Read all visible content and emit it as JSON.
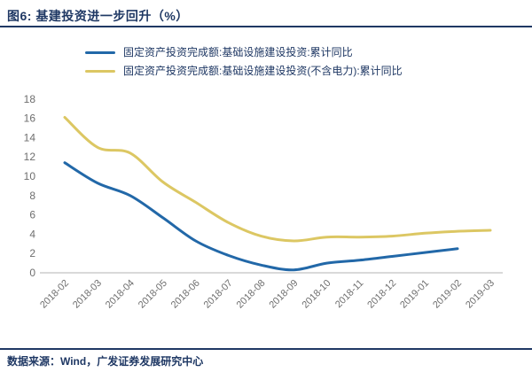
{
  "header": {
    "title": "图6:  基建投资进一步回升（%）"
  },
  "footer": {
    "source": "数据来源：Wind，广发证券发展研究中心"
  },
  "colors": {
    "navy": "#1F3864",
    "axis_text": "#6E6E6E",
    "axis_line": "#D9D9D9",
    "series_blue": "#2268A8",
    "series_yellow": "#DCC763",
    "background": "#FFFFFF"
  },
  "chart_data": {
    "type": "line",
    "title": "基建投资进一步回升（%）",
    "xlabel": "",
    "ylabel": "",
    "ylim": [
      0,
      18
    ],
    "yticks": [
      0,
      2,
      4,
      6,
      8,
      10,
      12,
      14,
      16,
      18
    ],
    "grid": false,
    "legend_position": "top",
    "categories": [
      "2018-02",
      "2018-03",
      "2018-04",
      "2018-05",
      "2018-06",
      "2018-07",
      "2018-08",
      "2018-09",
      "2018-10",
      "2018-11",
      "2018-12",
      "2019-01",
      "2019-02",
      "2019-03"
    ],
    "series": [
      {
        "name": "固定资产投资完成额:基础设施建设投资:累计同比",
        "color": "#2268A8",
        "values": [
          11.4,
          9.3,
          8.0,
          5.7,
          3.3,
          1.8,
          0.8,
          0.3,
          1.0,
          1.3,
          1.7,
          2.1,
          2.5,
          null
        ]
      },
      {
        "name": "固定资产投资完成额:基础设施建设投资(不含电力):累计同比",
        "color": "#DCC763",
        "values": [
          16.1,
          13.0,
          12.4,
          9.4,
          7.3,
          5.2,
          3.8,
          3.3,
          3.7,
          3.7,
          3.8,
          4.1,
          4.3,
          4.4
        ]
      }
    ]
  }
}
